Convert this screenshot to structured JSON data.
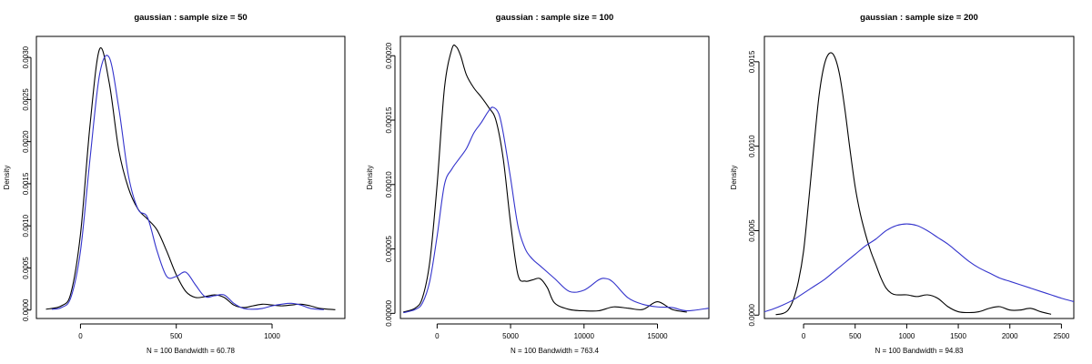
{
  "colors": {
    "black_line": "#000000",
    "blue_line": "#3333cc"
  },
  "chart_data": [
    {
      "type": "line",
      "title": "gaussian : sample size = 50",
      "ylabel": "Density",
      "xlabel": "N = 100   Bandwidth = 60.78",
      "xlim": [
        -230,
        1380
      ],
      "ylim": [
        -0.0001,
        0.00325
      ],
      "xticks": [
        0,
        500,
        1000
      ],
      "xtick_labels": [
        "0",
        "500",
        "1000"
      ],
      "yticks": [
        0,
        0.0005,
        0.001,
        0.0015,
        0.002,
        0.0025,
        0.003
      ],
      "ytick_labels": [
        "0.0000",
        "0.0005",
        "0.0010",
        "0.0015",
        "0.0020",
        "0.0025",
        "0.0030"
      ],
      "series": [
        {
          "color": "#000000",
          "x": [
            -180,
            -100,
            -50,
            0,
            50,
            100,
            150,
            200,
            250,
            300,
            350,
            400,
            450,
            500,
            550,
            600,
            650,
            700,
            750,
            800,
            850,
            900,
            950,
            1000,
            1050,
            1100,
            1150,
            1200,
            1250,
            1330
          ],
          "y": [
            1e-05,
            5e-05,
            0.0002,
            0.0009,
            0.0022,
            0.0031,
            0.0027,
            0.0019,
            0.00145,
            0.0012,
            0.00108,
            0.00095,
            0.0007,
            0.00042,
            0.00022,
            0.00015,
            0.00016,
            0.00018,
            0.00015,
            6e-05,
            3e-05,
            5e-05,
            7e-05,
            6e-05,
            5e-05,
            6e-05,
            7e-05,
            5e-05,
            2e-05,
            5e-06
          ]
        },
        {
          "color": "#3333cc",
          "x": [
            -150,
            -100,
            -50,
            0,
            50,
            100,
            150,
            200,
            250,
            300,
            350,
            400,
            450,
            500,
            550,
            600,
            650,
            700,
            750,
            800,
            850,
            900,
            950,
            1000,
            1050,
            1100,
            1150,
            1200,
            1270
          ],
          "y": [
            1e-05,
            3e-05,
            0.00015,
            0.0007,
            0.0018,
            0.0028,
            0.003,
            0.0024,
            0.0016,
            0.0012,
            0.0011,
            0.0007,
            0.0004,
            0.0004,
            0.00045,
            0.0003,
            0.00016,
            0.00017,
            0.00018,
            8e-05,
            2e-05,
            1e-05,
            2e-05,
            5e-05,
            7e-05,
            8e-05,
            6e-05,
            2e-05,
            5e-06
          ]
        }
      ]
    },
    {
      "type": "line",
      "title": "gaussian : sample size = 100",
      "ylabel": "Density",
      "xlabel": "N = 100   Bandwidth = 763.4",
      "xlim": [
        -2500,
        18500
      ],
      "ylim": [
        -4e-06,
        0.000215
      ],
      "xticks": [
        0,
        5000,
        10000,
        15000
      ],
      "xtick_labels": [
        "0",
        "5000",
        "10000",
        "15000"
      ],
      "yticks": [
        0,
        5e-05,
        0.0001,
        0.00015,
        0.0002
      ],
      "ytick_labels": [
        "0.00000",
        "0.00005",
        "0.00010",
        "0.00015",
        "0.00020"
      ],
      "series": [
        {
          "color": "#000000",
          "x": [
            -2300,
            -1500,
            -1000,
            -500,
            0,
            500,
            1000,
            1300,
            1600,
            2000,
            2500,
            3000,
            3500,
            4000,
            4500,
            5000,
            5500,
            6000,
            6500,
            7000,
            7500,
            8000,
            9000,
            10000,
            11000,
            12000,
            13000,
            14000,
            15000,
            16000,
            17000
          ],
          "y": [
            1e-06,
            4e-06,
            1.2e-05,
            4e-05,
            0.0001,
            0.000175,
            0.000205,
            0.000207,
            0.0002,
            0.000185,
            0.000175,
            0.000168,
            0.00016,
            0.00015,
            0.00012,
            7e-05,
            3e-05,
            2.5e-05,
            2.6e-05,
            2.7e-05,
            2e-05,
            8e-06,
            3e-06,
            2e-06,
            2e-06,
            5e-06,
            4e-06,
            3e-06,
            9e-06,
            3e-06,
            1e-06
          ]
        },
        {
          "color": "#3333cc",
          "x": [
            -2300,
            -1500,
            -1000,
            -500,
            0,
            500,
            1000,
            1500,
            2000,
            2500,
            3000,
            3500,
            3800,
            4200,
            4500,
            5000,
            5500,
            6000,
            6500,
            7000,
            8000,
            9000,
            10000,
            11000,
            11500,
            12000,
            13000,
            14000,
            15000,
            16000,
            17000,
            18500
          ],
          "y": [
            5e-07,
            3e-06,
            8e-06,
            2.5e-05,
            6e-05,
            0.0001,
            0.000112,
            0.00012,
            0.000128,
            0.00014,
            0.000148,
            0.000157,
            0.00016,
            0.000155,
            0.00014,
            0.000105,
            6.8e-05,
            5e-05,
            4.2e-05,
            3.7e-05,
            2.7e-05,
            1.7e-05,
            1.8e-05,
            2.6e-05,
            2.7e-05,
            2.4e-05,
            1.2e-05,
            7e-06,
            5e-06,
            4.5e-06,
            2e-06,
            4e-06
          ]
        }
      ]
    },
    {
      "type": "line",
      "title": "gaussian : sample size = 200",
      "ylabel": "Density",
      "xlabel": "N = 100   Bandwidth = 94.83",
      "xlim": [
        -380,
        2620
      ],
      "ylim": [
        -2e-05,
        0.00165
      ],
      "xticks": [
        0,
        500,
        1000,
        1500,
        2000,
        2500
      ],
      "xtick_labels": [
        "0",
        "500",
        "1000",
        "1500",
        "2000",
        "2500"
      ],
      "yticks": [
        0,
        0.0005,
        0.001,
        0.0015
      ],
      "ytick_labels": [
        "0.0000",
        "0.0005",
        "0.0010",
        "0.0015"
      ],
      "series": [
        {
          "color": "#000000",
          "x": [
            -270,
            -200,
            -150,
            -100,
            -50,
            0,
            50,
            100,
            150,
            200,
            250,
            300,
            350,
            400,
            450,
            500,
            550,
            600,
            650,
            700,
            750,
            800,
            850,
            900,
            1000,
            1100,
            1200,
            1300,
            1400,
            1500,
            1600,
            1700,
            1800,
            1900,
            2000,
            2100,
            2200,
            2300,
            2400
          ],
          "y": [
            3e-06,
            1e-05,
            3e-05,
            9e-05,
            0.0002,
            0.00038,
            0.00068,
            0.001,
            0.0013,
            0.00148,
            0.00155,
            0.00153,
            0.00142,
            0.00122,
            0.00098,
            0.00076,
            0.0006,
            0.00048,
            0.00038,
            0.0003,
            0.00022,
            0.00016,
            0.00013,
            0.00012,
            0.00012,
            0.00011,
            0.00012,
            0.0001,
            5e-05,
            2e-05,
            1.5e-05,
            2e-05,
            4e-05,
            5e-05,
            3e-05,
            3e-05,
            4e-05,
            2e-05,
            5e-06
          ]
        },
        {
          "color": "#3333cc",
          "x": [
            -380,
            -300,
            -200,
            -100,
            0,
            100,
            200,
            300,
            400,
            500,
            600,
            700,
            800,
            900,
            1000,
            1100,
            1200,
            1300,
            1400,
            1500,
            1600,
            1700,
            1800,
            1900,
            2000,
            2100,
            2200,
            2300,
            2400,
            2500,
            2620
          ],
          "y": [
            2e-05,
            3.5e-05,
            6e-05,
            9e-05,
            0.00013,
            0.00017,
            0.00021,
            0.00026,
            0.00031,
            0.00036,
            0.00041,
            0.00045,
            0.0005,
            0.00053,
            0.00054,
            0.00053,
            0.0005,
            0.00046,
            0.00042,
            0.00037,
            0.00032,
            0.00028,
            0.00025,
            0.00022,
            0.0002,
            0.00018,
            0.00016,
            0.00014,
            0.00012,
            0.0001,
            8e-05
          ]
        }
      ]
    }
  ]
}
